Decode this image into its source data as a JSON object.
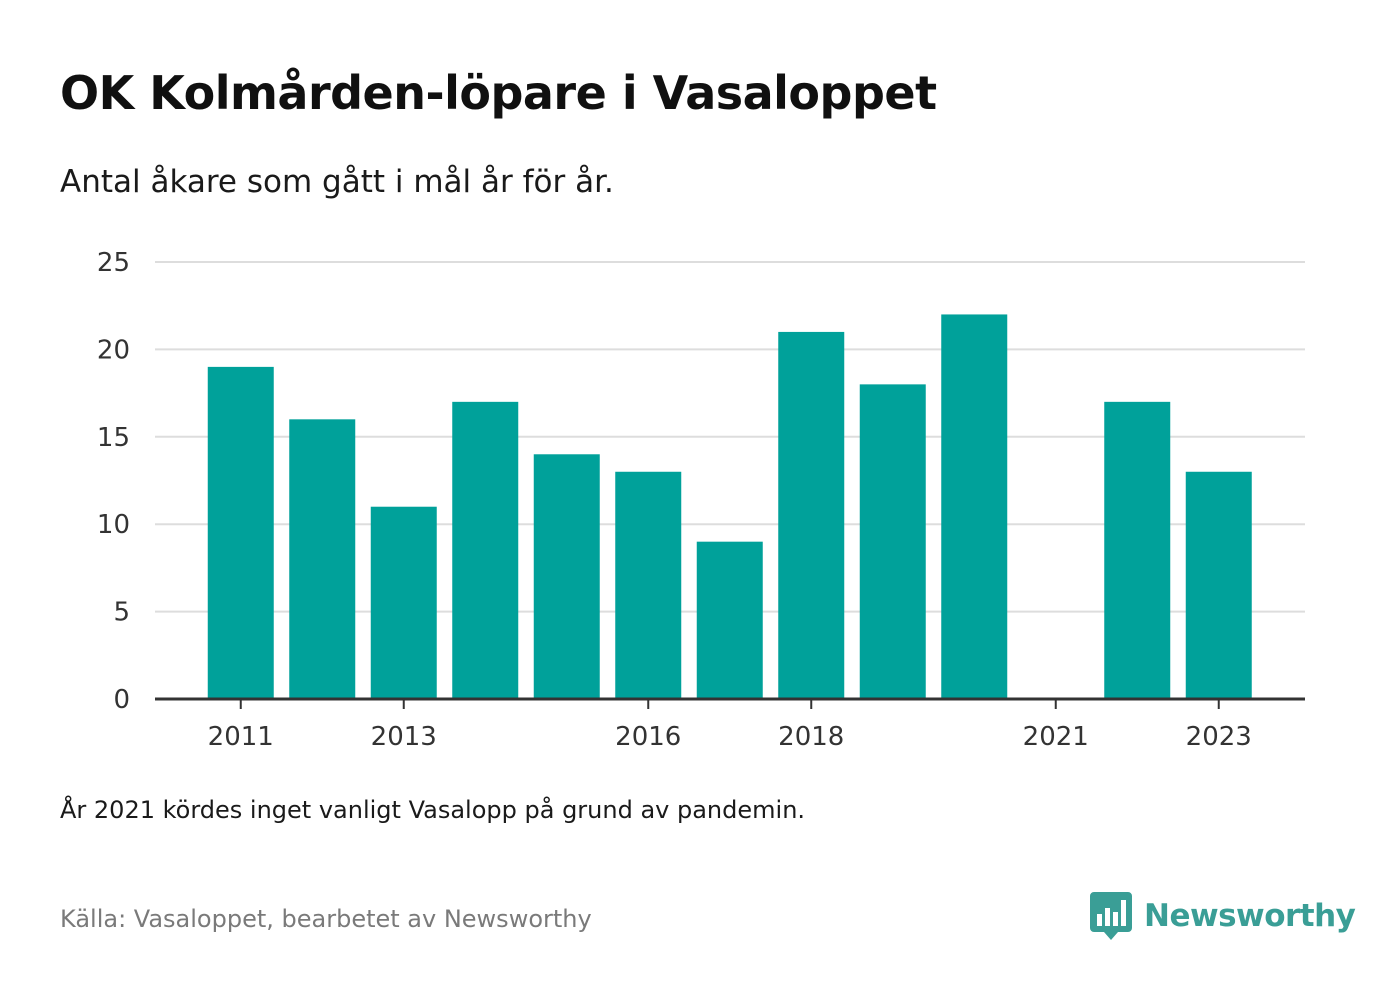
{
  "header": {
    "title": "OK Kolmården-löpare i Vasaloppet",
    "subtitle": "Antal åkare som gått i mål år för år."
  },
  "footer": {
    "note": "År 2021 kördes inget vanligt Vasalopp på grund av pandemin.",
    "source": "Källa: Vasaloppet, bearbetet av Newsworthy",
    "brand": "Newsworthy",
    "brand_icon": "newsworthy-logo-icon"
  },
  "colors": {
    "bar": "#00a19a",
    "gridline": "#dddddd",
    "axis": "#333333",
    "brand": "#3a9e96"
  },
  "chart_data": {
    "type": "bar",
    "title": "OK Kolmården-löpare i Vasaloppet",
    "subtitle": "Antal åkare som gått i mål år för år.",
    "categories": [
      "2011",
      "2012",
      "2013",
      "2014",
      "2015",
      "2016",
      "2017",
      "2018",
      "2019",
      "2020",
      "2021",
      "2022",
      "2023"
    ],
    "values": [
      19,
      16,
      11,
      17,
      14,
      13,
      9,
      21,
      18,
      22,
      null,
      17,
      13
    ],
    "x_tick_labels": [
      "2011",
      "2013",
      "2016",
      "2018",
      "2021",
      "2023"
    ],
    "y_ticks": [
      0,
      5,
      10,
      15,
      20,
      25
    ],
    "ylim": [
      0,
      25
    ],
    "xlabel": "",
    "ylabel": "",
    "grid": true,
    "legend": "none"
  }
}
